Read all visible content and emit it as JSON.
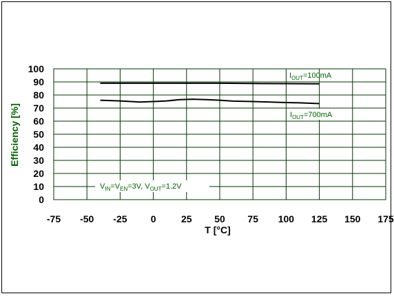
{
  "chart_data": {
    "type": "line",
    "title": "",
    "xlabel": "T [°C]",
    "ylabel": "Efficiency [%]",
    "xlim": [
      -75,
      175
    ],
    "ylim": [
      0,
      100
    ],
    "x_ticks": [
      -75,
      -50,
      -25,
      0,
      25,
      50,
      75,
      100,
      125,
      150,
      175
    ],
    "y_ticks": [
      0,
      10,
      20,
      30,
      40,
      50,
      60,
      70,
      80,
      90,
      100
    ],
    "grid": true,
    "legend": "none",
    "series": [
      {
        "x": [
          -40,
          -25,
          0,
          25,
          50,
          75,
          100,
          125
        ],
        "y": [
          89,
          89,
          89,
          89,
          89,
          88.8,
          88.7,
          88.5
        ]
      },
      {
        "x": [
          -40,
          -25,
          -10,
          0,
          10,
          20,
          30,
          40,
          50,
          60,
          75,
          90,
          100,
          110,
          125
        ],
        "y": [
          76,
          75.5,
          74.6,
          75,
          75.5,
          76.5,
          76.8,
          76.5,
          76,
          75.3,
          75,
          74.5,
          74.2,
          74,
          73.4
        ]
      }
    ],
    "annotations": {
      "iout1": {
        "prefix": "I",
        "sub": "OUT",
        "rest": "=100mA"
      },
      "iout2": {
        "prefix": "I",
        "sub": "OUT",
        "rest": "=700mA"
      },
      "conditions": {
        "v1": "V",
        "v1_sub": "IN",
        "eq1": "=V",
        "v2_sub": "EN",
        "mid": "=3V, V",
        "v3_sub": "OUT",
        "end": "=1.2V"
      }
    },
    "colors": {
      "grid": "#003300",
      "axis_title": "#006000",
      "annotation": "#006000",
      "line": "#000000",
      "plot_background": "#ffffff"
    }
  }
}
